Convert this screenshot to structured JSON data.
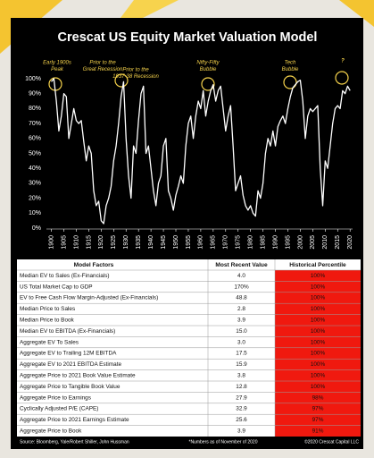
{
  "chart_data": {
    "type": "line",
    "title": "Crescat US Equity Market Valuation Model",
    "x": [
      1900,
      1901,
      1902,
      1903,
      1904,
      1905,
      1906,
      1907,
      1908,
      1909,
      1910,
      1911,
      1912,
      1913,
      1914,
      1915,
      1916,
      1917,
      1918,
      1919,
      1920,
      1921,
      1922,
      1923,
      1924,
      1925,
      1926,
      1927,
      1928,
      1929,
      1930,
      1931,
      1932,
      1933,
      1934,
      1935,
      1936,
      1937,
      1938,
      1939,
      1940,
      1941,
      1942,
      1943,
      1944,
      1945,
      1946,
      1947,
      1948,
      1949,
      1950,
      1951,
      1952,
      1953,
      1954,
      1955,
      1956,
      1957,
      1958,
      1959,
      1960,
      1961,
      1962,
      1963,
      1964,
      1965,
      1966,
      1967,
      1968,
      1969,
      1970,
      1971,
      1972,
      1973,
      1974,
      1975,
      1976,
      1977,
      1978,
      1979,
      1980,
      1981,
      1982,
      1983,
      1984,
      1985,
      1986,
      1987,
      1988,
      1989,
      1990,
      1991,
      1992,
      1993,
      1994,
      1995,
      1996,
      1997,
      1998,
      1999,
      2000,
      2001,
      2002,
      2003,
      2004,
      2005,
      2006,
      2007,
      2008,
      2009,
      2010,
      2011,
      2012,
      2013,
      2014,
      2015,
      2016,
      2017,
      2018,
      2019,
      2020
    ],
    "series": [
      {
        "color": "#ffffff",
        "values": [
          98,
          100,
          85,
          65,
          75,
          90,
          88,
          60,
          70,
          80,
          72,
          70,
          72,
          58,
          45,
          55,
          50,
          25,
          15,
          18,
          5,
          3,
          15,
          20,
          28,
          45,
          55,
          70,
          88,
          98,
          60,
          35,
          20,
          55,
          50,
          72,
          90,
          95,
          50,
          55,
          40,
          25,
          15,
          30,
          35,
          55,
          60,
          25,
          20,
          12,
          22,
          28,
          35,
          30,
          55,
          70,
          75,
          60,
          75,
          85,
          80,
          92,
          75,
          85,
          92,
          96,
          85,
          92,
          95,
          80,
          65,
          75,
          82,
          55,
          25,
          30,
          35,
          22,
          15,
          12,
          15,
          10,
          8,
          25,
          20,
          30,
          50,
          60,
          55,
          65,
          55,
          68,
          72,
          75,
          70,
          80,
          88,
          94,
          96,
          98,
          99,
          85,
          60,
          75,
          80,
          78,
          80,
          82,
          40,
          15,
          45,
          40,
          55,
          70,
          80,
          82,
          80,
          92,
          90,
          95,
          92
        ]
      }
    ],
    "xlim": [
      1898,
      2021
    ],
    "xticks": [
      1900,
      1905,
      1910,
      1915,
      1920,
      1925,
      1930,
      1935,
      1940,
      1945,
      1950,
      1955,
      1960,
      1965,
      1970,
      1975,
      1980,
      1985,
      1990,
      1995,
      2000,
      2005,
      2010,
      2015,
      2020
    ],
    "ylim": [
      0,
      100
    ],
    "yticks": [
      {
        "value": 0,
        "label": "0%"
      },
      {
        "value": 10,
        "label": "10%"
      },
      {
        "value": 20,
        "label": "20%"
      },
      {
        "value": 30,
        "label": "30%"
      },
      {
        "value": 40,
        "label": "40%"
      },
      {
        "value": 50,
        "label": "50%"
      },
      {
        "value": 60,
        "label": "60%"
      },
      {
        "value": 70,
        "label": "70%"
      },
      {
        "value": 80,
        "label": "80%"
      },
      {
        "value": 90,
        "label": "90%"
      },
      {
        "value": 100,
        "label": "100%"
      }
    ],
    "annotations": [
      {
        "lines": [
          "Early 1900s",
          "Peak"
        ]
      },
      {
        "lines": [
          "Prior to the",
          "Great Recession"
        ]
      },
      {
        "lines": [
          "Prior to the",
          "1937-38 Recession"
        ]
      },
      {
        "lines": [
          "Nifty-Fifty",
          "Bubble"
        ]
      },
      {
        "lines": [
          "Tech",
          "Bubble"
        ]
      },
      {
        "lines": [
          "?"
        ]
      }
    ]
  },
  "table": {
    "header": [
      "Model Factors",
      "Most Recent Value",
      "Historical Percentile"
    ],
    "rows": [
      [
        "Median EV to Sales (Ex-Financials)",
        "4.0",
        "100%"
      ],
      [
        "US Total Market Cap to GDP",
        "170%",
        "100%"
      ],
      [
        "EV to Free Cash Flow Margin-Adjusted (Ex-Financials)",
        "48.8",
        "100%"
      ],
      [
        "Median Price to Sales",
        "2.8",
        "100%"
      ],
      [
        "Median Price to Book",
        "3.9",
        "100%"
      ],
      [
        "Median EV to EBITDA (Ex-Financials)",
        "15.0",
        "100%"
      ],
      [
        "Aggregate EV To Sales",
        "3.0",
        "100%"
      ],
      [
        "Aggregate EV to Trailing 12M EBITDA",
        "17.5",
        "100%"
      ],
      [
        "Aggregate EV to 2021 EBITDA Estimate",
        "15.9",
        "100%"
      ],
      [
        "Aggregate Price to 2021 Book Value Estimate",
        "3.8",
        "100%"
      ],
      [
        "Aggregate Price to Tangible Book Value",
        "12.8",
        "100%"
      ],
      [
        "Aggregate Price to Earnings",
        "27.9",
        "98%"
      ],
      [
        "Cyclically Adjusted P/E (CAPE)",
        "32.9",
        "97%"
      ],
      [
        "Aggregate Price to 2021 Earnings Estimate",
        "25.6",
        "97%"
      ],
      [
        "Aggregate Price to Book",
        "3.9",
        "91%"
      ]
    ]
  },
  "footer": {
    "source": "Source: Bloomberg, Yale/Robert Shiller, John Hussman",
    "note": "*Numbers as of November of 2020",
    "copyright": "©2020 Crescat Capital LLC"
  }
}
